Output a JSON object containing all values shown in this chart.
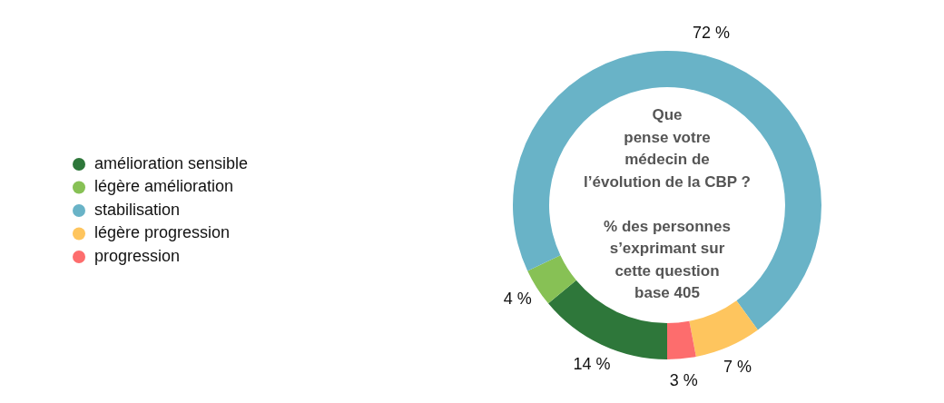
{
  "chart_data": {
    "type": "donut",
    "title": "Que\npense votre\nmédecin de\nl’évolution de la CBP ?",
    "subtitle": "% des personnes\ns’exprimant sur\ncette question\nbase 405",
    "categories": [
      "amélioration sensible",
      "légère amélioration",
      "stabilisation",
      "légère progression",
      "progression"
    ],
    "values": [
      14,
      4,
      72,
      7,
      3
    ],
    "colors": [
      "#2e773a",
      "#87c155",
      "#69b3c7",
      "#fec55e",
      "#fd6d6d"
    ],
    "value_labels": [
      "14 %",
      "4 %",
      "72 %",
      "7 %",
      "3 %"
    ],
    "legend": "left"
  }
}
